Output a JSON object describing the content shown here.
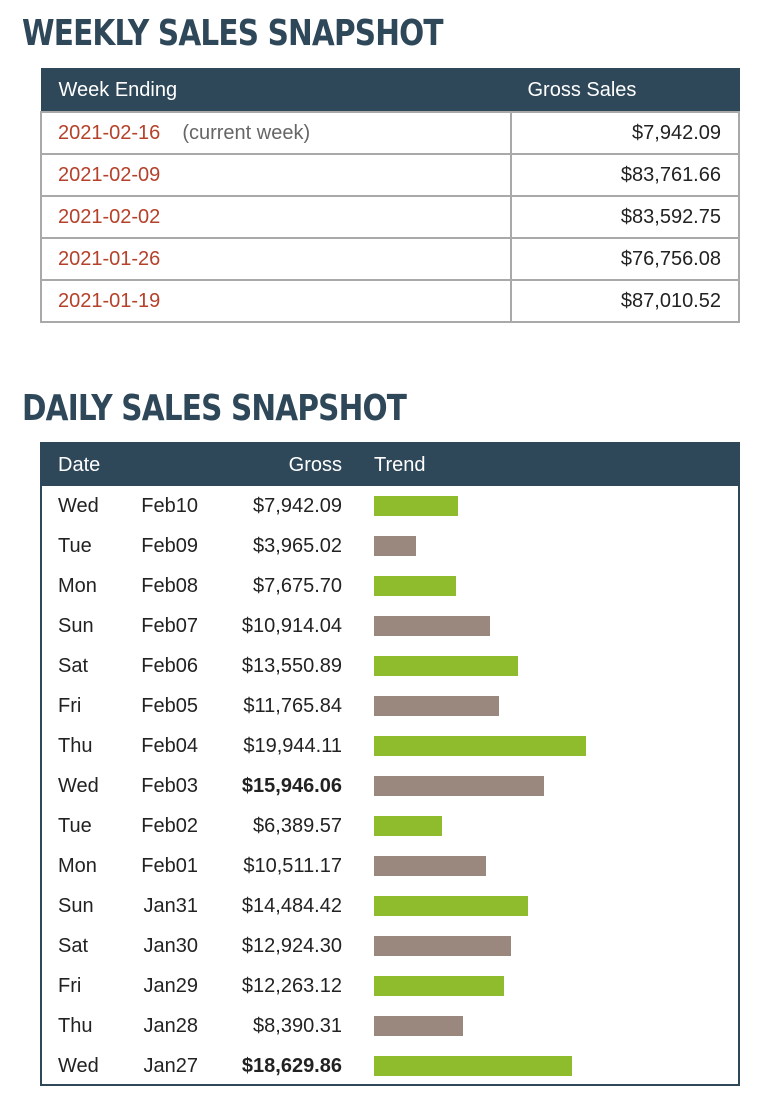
{
  "weekly": {
    "title": "WEEKLY SALES SNAPSHOT",
    "headers": {
      "week_ending": "Week Ending",
      "gross_sales": "Gross Sales"
    },
    "rows": [
      {
        "date": "2021-02-16",
        "note": "(current week)",
        "amount": "$7,942.09"
      },
      {
        "date": "2021-02-09",
        "note": "",
        "amount": "$83,761.66"
      },
      {
        "date": "2021-02-02",
        "note": "",
        "amount": "$83,592.75"
      },
      {
        "date": "2021-01-26",
        "note": "",
        "amount": "$76,756.08"
      },
      {
        "date": "2021-01-19",
        "note": "",
        "amount": "$87,010.52"
      }
    ]
  },
  "daily": {
    "title": "DAILY SALES SNAPSHOT",
    "headers": {
      "date": "Date",
      "gross": "Gross",
      "trend": "Trend"
    },
    "trend_max_value": 19944.11,
    "colors": {
      "up": "#8fbc2c",
      "down": "#9a877d",
      "header": "#2e4759",
      "date_link": "#b5412a"
    },
    "rows": [
      {
        "dow": "Wed",
        "md": "Feb10",
        "gross": "$7,942.09",
        "value": 7942.09,
        "trend": "up",
        "bold": false
      },
      {
        "dow": "Tue",
        "md": "Feb09",
        "gross": "$3,965.02",
        "value": 3965.02,
        "trend": "down",
        "bold": false
      },
      {
        "dow": "Mon",
        "md": "Feb08",
        "gross": "$7,675.70",
        "value": 7675.7,
        "trend": "up",
        "bold": false
      },
      {
        "dow": "Sun",
        "md": "Feb07",
        "gross": "$10,914.04",
        "value": 10914.04,
        "trend": "down",
        "bold": false
      },
      {
        "dow": "Sat",
        "md": "Feb06",
        "gross": "$13,550.89",
        "value": 13550.89,
        "trend": "up",
        "bold": false
      },
      {
        "dow": "Fri",
        "md": "Feb05",
        "gross": "$11,765.84",
        "value": 11765.84,
        "trend": "down",
        "bold": false
      },
      {
        "dow": "Thu",
        "md": "Feb04",
        "gross": "$19,944.11",
        "value": 19944.11,
        "trend": "up",
        "bold": false
      },
      {
        "dow": "Wed",
        "md": "Feb03",
        "gross": "$15,946.06",
        "value": 15946.06,
        "trend": "down",
        "bold": true
      },
      {
        "dow": "Tue",
        "md": "Feb02",
        "gross": "$6,389.57",
        "value": 6389.57,
        "trend": "up",
        "bold": false
      },
      {
        "dow": "Mon",
        "md": "Feb01",
        "gross": "$10,511.17",
        "value": 10511.17,
        "trend": "down",
        "bold": false
      },
      {
        "dow": "Sun",
        "md": "Jan31",
        "gross": "$14,484.42",
        "value": 14484.42,
        "trend": "up",
        "bold": false
      },
      {
        "dow": "Sat",
        "md": "Jan30",
        "gross": "$12,924.30",
        "value": 12924.3,
        "trend": "down",
        "bold": false
      },
      {
        "dow": "Fri",
        "md": "Jan29",
        "gross": "$12,263.12",
        "value": 12263.12,
        "trend": "up",
        "bold": false
      },
      {
        "dow": "Thu",
        "md": "Jan28",
        "gross": "$8,390.31",
        "value": 8390.31,
        "trend": "down",
        "bold": false
      },
      {
        "dow": "Wed",
        "md": "Jan27",
        "gross": "$18,629.86",
        "value": 18629.86,
        "trend": "up",
        "bold": true
      }
    ]
  }
}
